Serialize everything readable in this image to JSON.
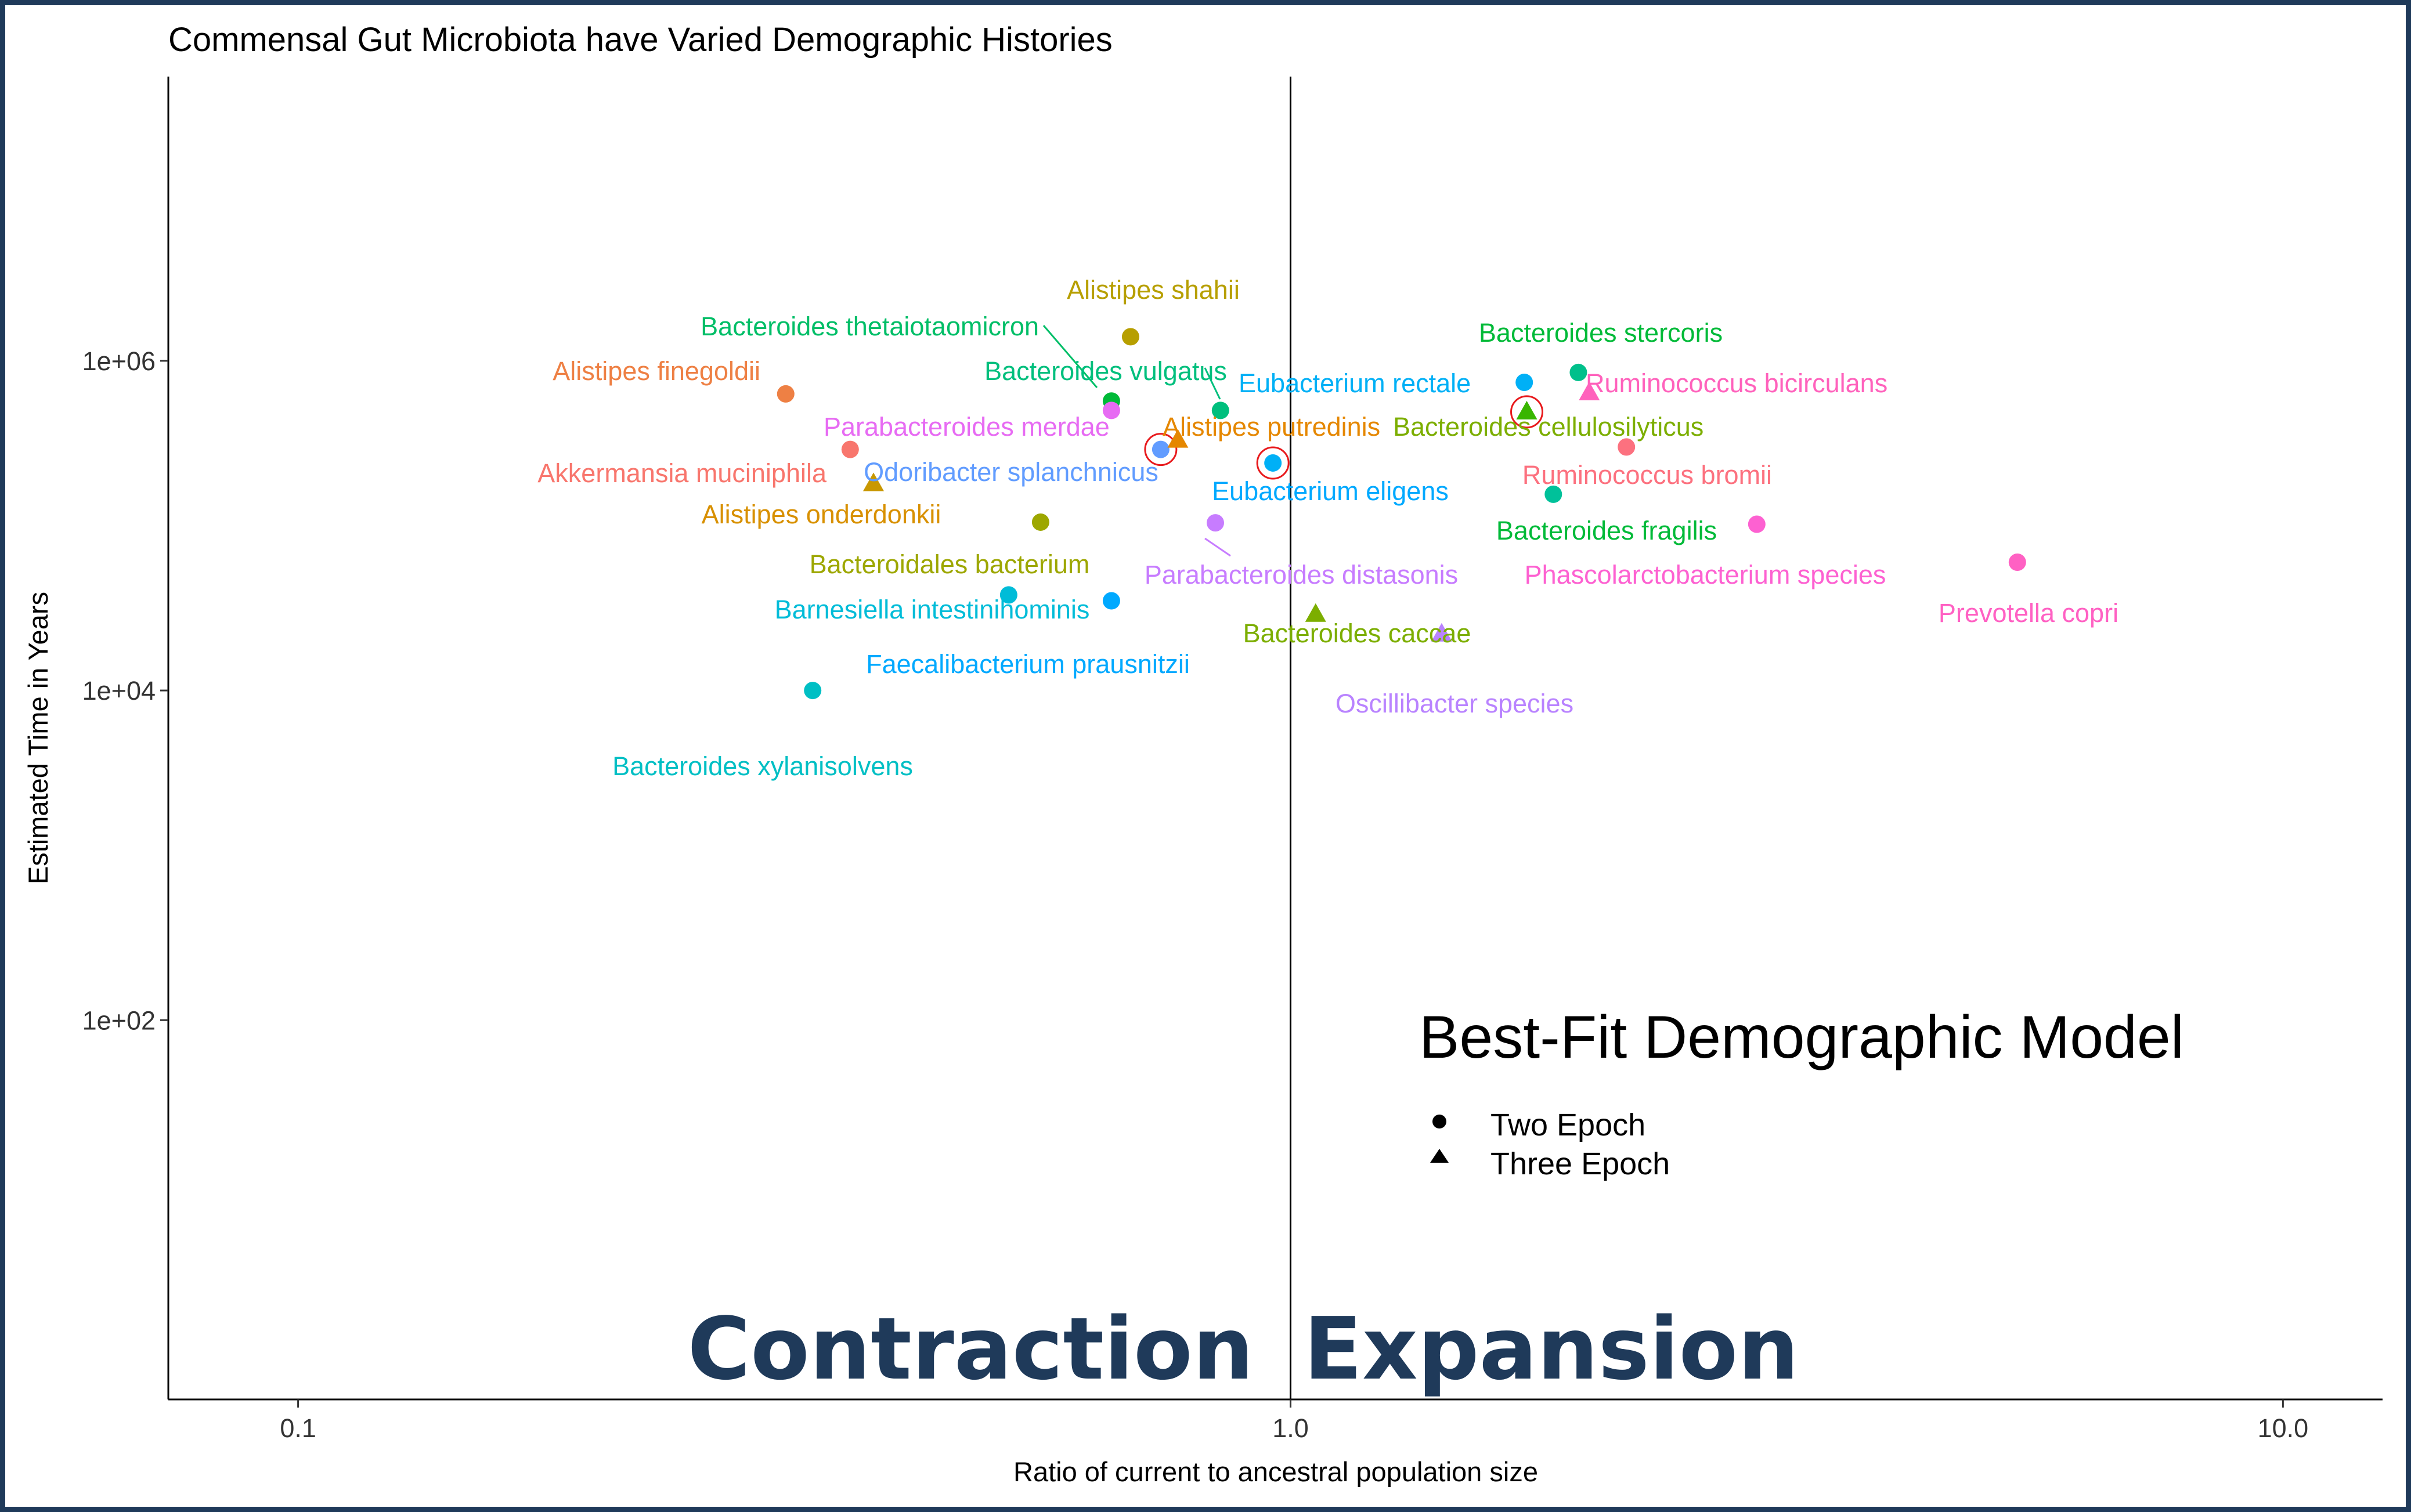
{
  "chart_data": {
    "type": "scatter",
    "title": "Commensal Gut Microbiota have Varied Demographic Histories",
    "xlabel": "Ratio of current to ancestral population size",
    "ylabel": "Estimated Time in Years",
    "x_scale": "log",
    "y_scale": "log",
    "xlim": [
      0.074,
      12.6
    ],
    "ylim": [
      0.5,
      53000000
    ],
    "x_ticks": [
      {
        "value": 0.1,
        "label": "0.1"
      },
      {
        "value": 1.0,
        "label": "1.0"
      },
      {
        "value": 10.0,
        "label": "10.0"
      }
    ],
    "y_ticks": [
      {
        "value": 100,
        "label": "1e+02"
      },
      {
        "value": 10000,
        "label": "1e+04"
      },
      {
        "value": 1000000,
        "label": "1e+06"
      }
    ],
    "vertical_reference_line": 1.0,
    "grid": false,
    "legend": {
      "title": "Best-Fit Demographic Model",
      "placement": "bottom-right",
      "entries": [
        {
          "label": "Two Epoch",
          "shape": "circle"
        },
        {
          "label": "Three Epoch",
          "shape": "triangle"
        }
      ]
    },
    "region_labels": {
      "left": "Contraction",
      "right": "Expansion"
    },
    "points": [
      {
        "species": "Alistipes shahii",
        "x": 0.69,
        "y": 1400000,
        "model": "Two Epoch",
        "color": "#b79f00",
        "highlighted": false
      },
      {
        "species": "Bacteroides thetaiotaomicron",
        "x": 0.66,
        "y": 570000,
        "model": "Two Epoch",
        "color": "#00ba38",
        "highlighted": false
      },
      {
        "species": "Alistipes finegoldii",
        "x": 0.31,
        "y": 630000,
        "model": "Two Epoch",
        "color": "#ee8044",
        "highlighted": false
      },
      {
        "species": "Bacteroides vulgatus",
        "x": 0.66,
        "y": 500000,
        "model": "Two Epoch",
        "color": "#e76bf3",
        "highlighted": false
      },
      {
        "species": "Eubacterium rectale",
        "x": 0.85,
        "y": 500000,
        "model": "Two Epoch",
        "color": "#00bf7d",
        "highlighted": false
      },
      {
        "species": "Parabacteroides merdae",
        "x": 0.74,
        "y": 290000,
        "model": "Two Epoch",
        "color": "#619cff",
        "highlighted": true
      },
      {
        "species": "Alistipes putredinis",
        "x": 0.77,
        "y": 330000,
        "model": "Three Epoch",
        "color": "#e58700",
        "highlighted": false
      },
      {
        "species": "Akkermansia muciniphila",
        "x": 0.36,
        "y": 290000,
        "model": "Two Epoch",
        "color": "#f8766d",
        "highlighted": false
      },
      {
        "species": "Odoribacter splanchnicus",
        "x": 0.96,
        "y": 240000,
        "model": "Two Epoch",
        "color": "#00b0f6",
        "highlighted": true
      },
      {
        "species": "Alistipes onderdonkii",
        "x": 0.38,
        "y": 180000,
        "model": "Three Epoch",
        "color": "#c99800",
        "highlighted": false
      },
      {
        "species": "Bacteroides stercoris",
        "x": 1.95,
        "y": 850000,
        "model": "Two Epoch",
        "color": "#00c08b",
        "highlighted": false
      },
      {
        "species": "Eubacterium rectale (2)",
        "x": 1.72,
        "y": 740000,
        "model": "Two Epoch",
        "color": "#00b0f6",
        "highlighted": false
      },
      {
        "species": "Ruminococcus bicirculans",
        "x": 2.0,
        "y": 640000,
        "model": "Three Epoch",
        "color": "#ff62bc",
        "highlighted": false
      },
      {
        "species": "Bacteroides cellulosilyticus",
        "x": 1.73,
        "y": 490000,
        "model": "Three Epoch",
        "color": "#39b600",
        "highlighted": true
      },
      {
        "species": "Ruminococcus bromii",
        "x": 2.18,
        "y": 300000,
        "model": "Two Epoch",
        "color": "#fc717f",
        "highlighted": false
      },
      {
        "species": "Bacteroides fragilis",
        "x": 1.84,
        "y": 155000,
        "model": "Two Epoch",
        "color": "#00c19a",
        "highlighted": false
      },
      {
        "species": "Phascolarctobacterium species",
        "x": 2.95,
        "y": 102000,
        "model": "Two Epoch",
        "color": "#fd61d1",
        "highlighted": false
      },
      {
        "species": "Prevotella copri",
        "x": 5.4,
        "y": 60000,
        "model": "Two Epoch",
        "color": "#ff61c3",
        "highlighted": false
      },
      {
        "species": "Bacteroidales bacterium",
        "x": 0.56,
        "y": 105000,
        "model": "Two Epoch",
        "color": "#9da700",
        "highlighted": false
      },
      {
        "species": "Parabacteroides distasonis",
        "x": 0.84,
        "y": 104000,
        "model": "Two Epoch",
        "color": "#c77cff",
        "highlighted": false
      },
      {
        "species": "Barnesiella intestinihominis",
        "x": 0.52,
        "y": 38000,
        "model": "Two Epoch",
        "color": "#00bcd8",
        "highlighted": false
      },
      {
        "species": "Faecalibacterium prausnitzii",
        "x": 0.66,
        "y": 35000,
        "model": "Two Epoch",
        "color": "#00a9ff",
        "highlighted": false
      },
      {
        "species": "Bacteroides caccae",
        "x": 1.06,
        "y": 29000,
        "model": "Three Epoch",
        "color": "#7cae00",
        "highlighted": false
      },
      {
        "species": "Oscillibacter species",
        "x": 1.42,
        "y": 22000,
        "model": "Three Epoch",
        "color": "#b983ff",
        "highlighted": false
      },
      {
        "species": "Bacteroides xylanisolvens",
        "x": 0.33,
        "y": 10000,
        "model": "Two Epoch",
        "color": "#00bfc4",
        "highlighted": false
      }
    ],
    "point_labels": [
      {
        "text": "Alistipes shahii",
        "color": "#b79f00"
      },
      {
        "text": "Bacteroides thetaiotaomicron",
        "color": "#00be67"
      },
      {
        "text": "Bacteroides stercoris",
        "color": "#00ba38"
      },
      {
        "text": "Alistipes finegoldii",
        "color": "#ee8044"
      },
      {
        "text": "Bacteroides vulgatus",
        "color": "#00bf7d"
      },
      {
        "text": "Eubacterium rectale",
        "color": "#00b0f6"
      },
      {
        "text": "Ruminococcus bicirculans",
        "color": "#ff62bc"
      },
      {
        "text": "Parabacteroides merdae",
        "color": "#e76bf3"
      },
      {
        "text": "Alistipes putredinis",
        "color": "#e58700"
      },
      {
        "text": "Bacteroides cellulosilyticus",
        "color": "#7cae00"
      },
      {
        "text": "Akkermansia muciniphila",
        "color": "#f8766d"
      },
      {
        "text": "Odoribacter splanchnicus",
        "color": "#619cff"
      },
      {
        "text": "Ruminococcus bromii",
        "color": "#fc717f"
      },
      {
        "text": "Eubacterium eligens",
        "color": "#00a9ff"
      },
      {
        "text": "Alistipes onderdonkii",
        "color": "#d89000"
      },
      {
        "text": "Bacteroides fragilis",
        "color": "#00ba38"
      },
      {
        "text": "Bacteroidales bacterium",
        "color": "#9da700"
      },
      {
        "text": "Parabacteroides distasonis",
        "color": "#c77cff"
      },
      {
        "text": "Phascolarctobacterium species",
        "color": "#fd61d1"
      },
      {
        "text": "Barnesiella intestinihominis",
        "color": "#00bcd8"
      },
      {
        "text": "Prevotella copri",
        "color": "#ff61c3"
      },
      {
        "text": "Bacteroides caccae",
        "color": "#7cae00"
      },
      {
        "text": "Faecalibacterium prausnitzii",
        "color": "#00a9ff"
      },
      {
        "text": "Oscillibacter species",
        "color": "#b983ff"
      },
      {
        "text": "Bacteroides xylanisolvens",
        "color": "#00bfc4"
      }
    ]
  }
}
